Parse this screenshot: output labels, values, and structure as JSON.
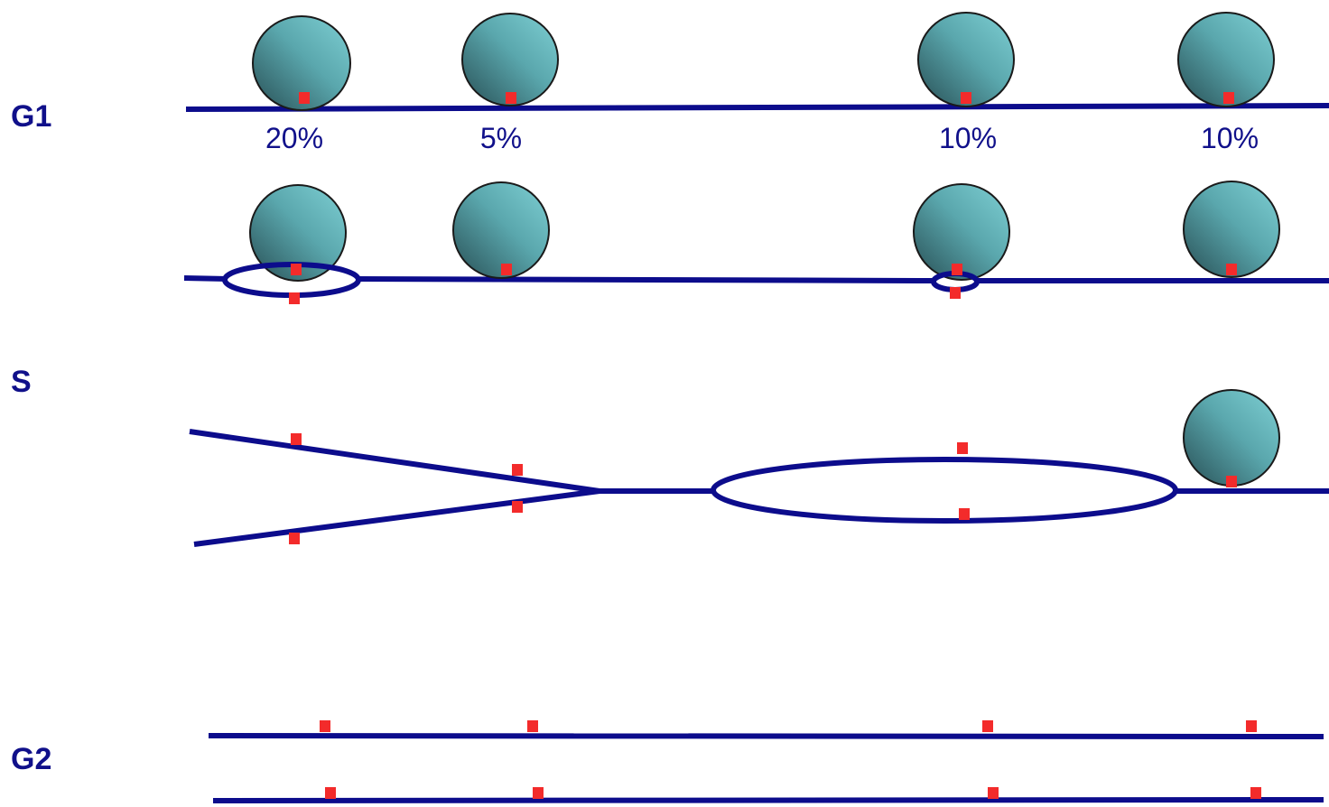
{
  "phases": {
    "g1": "G1",
    "s": "S",
    "g2": "G2"
  },
  "origin_efficiencies": [
    "20%",
    "5%",
    "10%",
    "10%"
  ],
  "colors": {
    "dna_strand": "#0c0c8c",
    "origin_marker": "#f32b2b",
    "label_text": "#10108a",
    "complex_light": "#74c4c8",
    "complex_dark": "#2c5a60"
  },
  "icons": {
    "licensing_complex": "teal-sphere-icon",
    "origin": "red-square-icon"
  }
}
